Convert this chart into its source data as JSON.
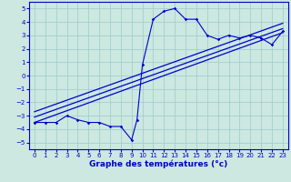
{
  "xlabel": "Graphe des températures (°c)",
  "xlim": [
    -0.5,
    23.5
  ],
  "ylim": [
    -5.5,
    5.5
  ],
  "xticks": [
    0,
    1,
    2,
    3,
    4,
    5,
    6,
    7,
    8,
    9,
    10,
    11,
    12,
    13,
    14,
    15,
    16,
    17,
    18,
    19,
    20,
    21,
    22,
    23
  ],
  "yticks": [
    -5,
    -4,
    -3,
    -2,
    -1,
    0,
    1,
    2,
    3,
    4,
    5
  ],
  "line_color": "#0000cc",
  "bg_color": "#cce8e0",
  "grid_color": "#99cccc",
  "data_x": [
    0,
    1,
    2,
    3,
    4,
    5,
    6,
    7,
    8,
    9,
    9.5,
    10,
    11,
    12,
    13,
    14,
    15,
    16,
    17,
    18,
    19,
    20,
    21,
    22,
    23
  ],
  "data_y": [
    -3.5,
    -3.5,
    -3.5,
    -3.0,
    -3.3,
    -3.5,
    -3.5,
    -3.8,
    -3.8,
    -4.8,
    -3.3,
    0.8,
    4.2,
    4.8,
    5.0,
    4.2,
    4.2,
    3.0,
    2.7,
    3.0,
    2.8,
    3.0,
    2.8,
    2.3,
    3.3
  ],
  "reg_lines": [
    {
      "x": [
        0,
        23
      ],
      "y": [
        -3.5,
        3.2
      ]
    },
    {
      "x": [
        0,
        23
      ],
      "y": [
        -3.1,
        3.5
      ]
    },
    {
      "x": [
        0,
        23
      ],
      "y": [
        -2.7,
        3.9
      ]
    }
  ]
}
